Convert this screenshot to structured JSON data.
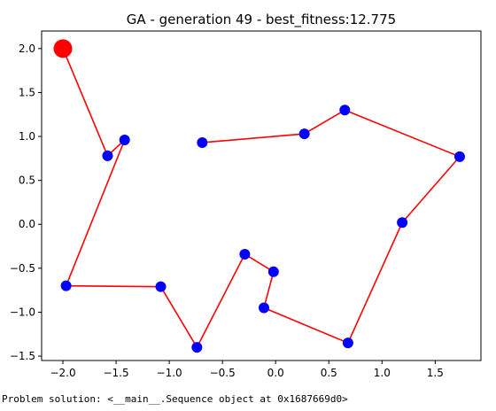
{
  "chart_data": {
    "type": "scatter",
    "title": "GA - generation 49 - best_fitness:12.775",
    "xlabel": "",
    "ylabel": "",
    "xlim": [
      -2.2,
      1.93
    ],
    "ylim": [
      -1.55,
      2.2
    ],
    "x_ticks": [
      -2.0,
      -1.5,
      -1.0,
      -0.5,
      0.0,
      0.5,
      1.0,
      1.5
    ],
    "x_tick_labels": [
      "−2.0",
      "−1.5",
      "−1.0",
      "−0.5",
      "0.0",
      "0.5",
      "1.0",
      "1.5"
    ],
    "y_ticks": [
      2.0,
      1.5,
      1.0,
      0.5,
      0.0,
      -0.5,
      -1.0,
      -1.5
    ],
    "y_tick_labels": [
      "2.0",
      "1.5",
      "1.0",
      "0.5",
      "0.0",
      "−0.5",
      "−1.0",
      "−1.5"
    ],
    "grid": false,
    "route_color": "#ff0000",
    "point_color": "#0000ff",
    "start_color": "#ff0000",
    "start": {
      "x": -2.0,
      "y": 2.0
    },
    "route": [
      {
        "x": -2.0,
        "y": 2.0
      },
      {
        "x": -1.58,
        "y": 0.78
      },
      {
        "x": -1.42,
        "y": 0.96
      },
      {
        "x": -1.97,
        "y": -0.7
      },
      {
        "x": -1.08,
        "y": -0.71
      },
      {
        "x": -0.74,
        "y": -1.4
      },
      {
        "x": -0.29,
        "y": -0.34
      },
      {
        "x": -0.02,
        "y": -0.54
      },
      {
        "x": -0.11,
        "y": -0.95
      },
      {
        "x": 0.68,
        "y": -1.35
      },
      {
        "x": 1.19,
        "y": 0.02
      },
      {
        "x": 1.73,
        "y": 0.77
      },
      {
        "x": 0.65,
        "y": 1.3
      },
      {
        "x": 0.27,
        "y": 1.03
      },
      {
        "x": -0.69,
        "y": 0.93
      }
    ],
    "points": [
      {
        "x": -1.58,
        "y": 0.78
      },
      {
        "x": -1.42,
        "y": 0.96
      },
      {
        "x": -1.97,
        "y": -0.7
      },
      {
        "x": -1.08,
        "y": -0.71
      },
      {
        "x": -0.74,
        "y": -1.4
      },
      {
        "x": -0.29,
        "y": -0.34
      },
      {
        "x": -0.02,
        "y": -0.54
      },
      {
        "x": -0.11,
        "y": -0.95
      },
      {
        "x": 0.68,
        "y": -1.35
      },
      {
        "x": 1.19,
        "y": 0.02
      },
      {
        "x": 1.73,
        "y": 0.77
      },
      {
        "x": 0.65,
        "y": 1.3
      },
      {
        "x": 0.27,
        "y": 1.03
      },
      {
        "x": -0.69,
        "y": 0.93
      }
    ]
  },
  "footer": {
    "text": "Problem solution: <__main__.Sequence object at 0x1687669d0>"
  }
}
